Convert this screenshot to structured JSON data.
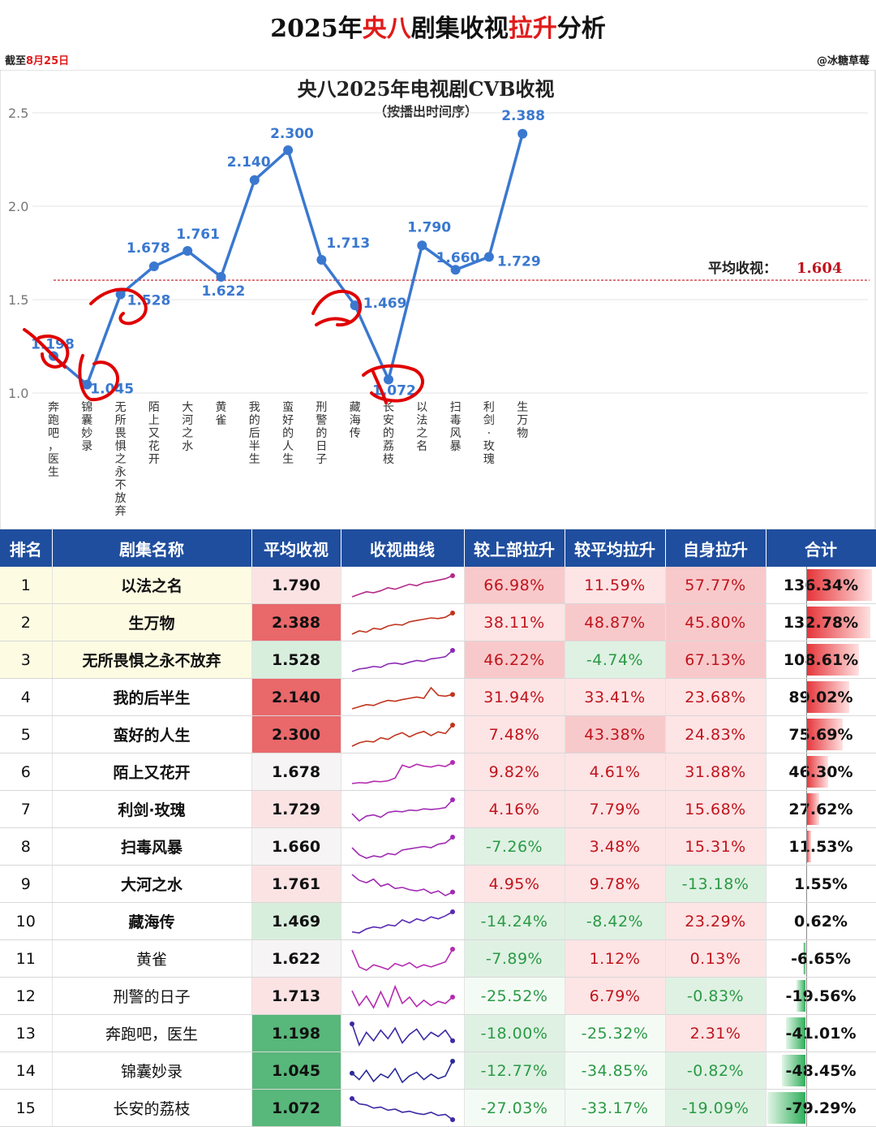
{
  "header": {
    "title_a": "2025年",
    "title_b": "央八",
    "title_c": "剧集收视",
    "title_d": "拉升",
    "title_e": "分析",
    "date_prefix": "截至",
    "date_value": "8月25日",
    "author": "@冰糖草莓"
  },
  "chart_data": {
    "type": "line",
    "title": "央八2025年电视剧CVB收视",
    "subtitle": "（按播出时间序）",
    "yticks": [
      "2.5",
      "2.0",
      "1.5",
      "1.0"
    ],
    "ylim": [
      1.0,
      2.5
    ],
    "categories": [
      "奔跑吧，医生",
      "锦囊妙录",
      "无所畏惧之永不放弃",
      "陌上又花开",
      "大河之水",
      "黄雀",
      "我的后半生",
      "蛮好的人生",
      "刑警的日子",
      "藏海传",
      "长安的荔枝",
      "以法之名",
      "扫毒风暴",
      "利剑·玫瑰",
      "生万物"
    ],
    "values": [
      1.198,
      1.045,
      1.528,
      1.678,
      1.761,
      1.622,
      2.14,
      2.3,
      1.713,
      1.469,
      1.072,
      1.79,
      1.66,
      1.729,
      2.388
    ],
    "labels": [
      "1.198",
      "1.045",
      "1.528",
      "1.678",
      "1.761",
      "1.622",
      "2.140",
      "2.300",
      "1.713",
      "1.469",
      "1.072",
      "1.790",
      "1.660",
      "1.729",
      "2.388"
    ],
    "average_label": "平均收视：",
    "average_value": "1.604",
    "average": 1.604,
    "line_color": "#3a78d0",
    "average_color": "#c0141c",
    "annotation_color": "#e00000"
  },
  "table": {
    "headers": [
      "排名",
      "剧集名称",
      "平均收视",
      "收视曲线",
      "较上部拉升",
      "较平均拉升",
      "自身拉升",
      "合计"
    ],
    "rows": [
      {
        "rank": "1",
        "name": "以法之名",
        "avg": "1.790",
        "prev": "66.98%",
        "mean": "11.59%",
        "self": "57.77%",
        "total": "136.34%",
        "t": 136.34,
        "spark": [
          1.0,
          1.05,
          1.1,
          1.08,
          1.12,
          1.18,
          1.15,
          1.2,
          1.25,
          1.22,
          1.28,
          1.3,
          1.33,
          1.36,
          1.42
        ]
      },
      {
        "rank": "2",
        "name": "生万物",
        "avg": "2.388",
        "prev": "38.11%",
        "mean": "48.87%",
        "self": "45.80%",
        "total": "132.78%",
        "t": 132.78,
        "spark": [
          1.6,
          1.7,
          1.66,
          1.78,
          1.75,
          1.85,
          1.9,
          1.88,
          1.98,
          2.02,
          2.06,
          2.1,
          2.08,
          2.12,
          2.25
        ]
      },
      {
        "rank": "3",
        "name": "无所畏惧之永不放弃",
        "avg": "1.528",
        "prev": "46.22%",
        "mean": "-4.74%",
        "self": "67.13%",
        "total": "108.61%",
        "t": 108.61,
        "spark": [
          1.0,
          1.06,
          1.08,
          1.12,
          1.1,
          1.18,
          1.2,
          1.17,
          1.22,
          1.26,
          1.24,
          1.3,
          1.32,
          1.35,
          1.5
        ]
      },
      {
        "rank": "4",
        "name": "我的后半生",
        "avg": "2.140",
        "prev": "31.94%",
        "mean": "33.41%",
        "self": "23.68%",
        "total": "89.02%",
        "t": 89.02,
        "spark": [
          1.8,
          1.85,
          1.9,
          1.88,
          1.95,
          2.0,
          1.98,
          2.02,
          2.05,
          2.08,
          2.05,
          2.3,
          2.12,
          2.1,
          2.14
        ]
      },
      {
        "rank": "5",
        "name": "蛮好的人生",
        "avg": "2.300",
        "prev": "7.48%",
        "mean": "43.38%",
        "self": "24.83%",
        "total": "75.69%",
        "t": 75.69,
        "spark": [
          1.9,
          1.98,
          2.02,
          2.0,
          2.1,
          2.06,
          2.16,
          2.22,
          2.12,
          2.2,
          2.25,
          2.15,
          2.24,
          2.2,
          2.4
        ]
      },
      {
        "rank": "6",
        "name": "陌上又花开",
        "avg": "1.678",
        "prev": "9.82%",
        "mean": "4.61%",
        "self": "31.88%",
        "total": "46.30%",
        "t": 46.3,
        "spark": [
          1.3,
          1.32,
          1.31,
          1.35,
          1.34,
          1.36,
          1.42,
          1.7,
          1.65,
          1.72,
          1.68,
          1.66,
          1.7,
          1.67,
          1.76
        ]
      },
      {
        "rank": "7",
        "name": "利剑·玫瑰",
        "avg": "1.729",
        "prev": "4.16%",
        "mean": "7.79%",
        "self": "15.68%",
        "total": "27.62%",
        "t": 27.62,
        "spark": [
          1.62,
          1.5,
          1.58,
          1.6,
          1.56,
          1.64,
          1.66,
          1.65,
          1.68,
          1.67,
          1.7,
          1.69,
          1.7,
          1.72,
          1.85
        ]
      },
      {
        "rank": "8",
        "name": "扫毒风暴",
        "avg": "1.660",
        "prev": "-7.26%",
        "mean": "3.48%",
        "self": "15.31%",
        "total": "11.53%",
        "t": 11.53,
        "spark": [
          1.6,
          1.48,
          1.42,
          1.46,
          1.44,
          1.5,
          1.48,
          1.56,
          1.58,
          1.6,
          1.62,
          1.6,
          1.66,
          1.68,
          1.78
        ]
      },
      {
        "rank": "9",
        "name": "大河之水",
        "avg": "1.761",
        "prev": "4.95%",
        "mean": "9.78%",
        "self": "-13.18%",
        "total": "1.55%",
        "t": 1.55,
        "spark": [
          2.0,
          1.9,
          1.86,
          1.92,
          1.8,
          1.84,
          1.76,
          1.78,
          1.74,
          1.72,
          1.75,
          1.68,
          1.72,
          1.64,
          1.7
        ]
      },
      {
        "rank": "10",
        "name": "藏海传",
        "avg": "1.469",
        "prev": "-14.24%",
        "mean": "-8.42%",
        "self": "23.29%",
        "total": "0.62%",
        "t": 0.62,
        "spark": [
          1.2,
          1.18,
          1.26,
          1.3,
          1.28,
          1.34,
          1.32,
          1.44,
          1.38,
          1.46,
          1.42,
          1.5,
          1.46,
          1.52,
          1.6
        ]
      },
      {
        "rank": "11",
        "name": "黄雀",
        "avg": "1.622",
        "prev": "-7.89%",
        "mean": "1.12%",
        "self": "0.13%",
        "total": "-6.65%",
        "t": -6.65,
        "spark": [
          1.9,
          1.5,
          1.42,
          1.55,
          1.5,
          1.44,
          1.58,
          1.52,
          1.6,
          1.48,
          1.55,
          1.5,
          1.56,
          1.62,
          1.92
        ]
      },
      {
        "rank": "12",
        "name": "刑警的日子",
        "avg": "1.713",
        "prev": "-25.52%",
        "mean": "6.79%",
        "self": "-0.83%",
        "total": "-19.56%",
        "t": -19.56,
        "spark": [
          1.9,
          1.62,
          1.8,
          1.58,
          1.88,
          1.6,
          1.98,
          1.66,
          1.78,
          1.6,
          1.72,
          1.62,
          1.7,
          1.66,
          1.78
        ]
      },
      {
        "rank": "13",
        "name": "奔跑吧，医生",
        "avg": "1.198",
        "prev": "-18.00%",
        "mean": "-25.32%",
        "self": "2.31%",
        "total": "-41.01%",
        "t": -41.01,
        "spark": [
          1.3,
          1.1,
          1.22,
          1.14,
          1.24,
          1.16,
          1.26,
          1.12,
          1.2,
          1.25,
          1.15,
          1.22,
          1.18,
          1.24,
          1.14
        ]
      },
      {
        "rank": "14",
        "name": "锦囊妙录",
        "avg": "1.045",
        "prev": "-12.77%",
        "mean": "-34.85%",
        "self": "-0.82%",
        "total": "-48.45%",
        "t": -48.45,
        "spark": [
          1.05,
          0.98,
          1.08,
          0.96,
          1.04,
          1.0,
          1.1,
          0.95,
          1.02,
          1.06,
          0.98,
          1.04,
          0.99,
          1.02,
          1.18
        ]
      },
      {
        "rank": "15",
        "name": "长安的荔枝",
        "avg": "1.072",
        "prev": "-27.03%",
        "mean": "-33.17%",
        "self": "-19.09%",
        "total": "-79.29%",
        "t": -79.29,
        "spark": [
          1.4,
          1.3,
          1.28,
          1.22,
          1.24,
          1.18,
          1.2,
          1.14,
          1.16,
          1.12,
          1.1,
          1.14,
          1.08,
          1.1,
          1.0
        ]
      }
    ]
  }
}
